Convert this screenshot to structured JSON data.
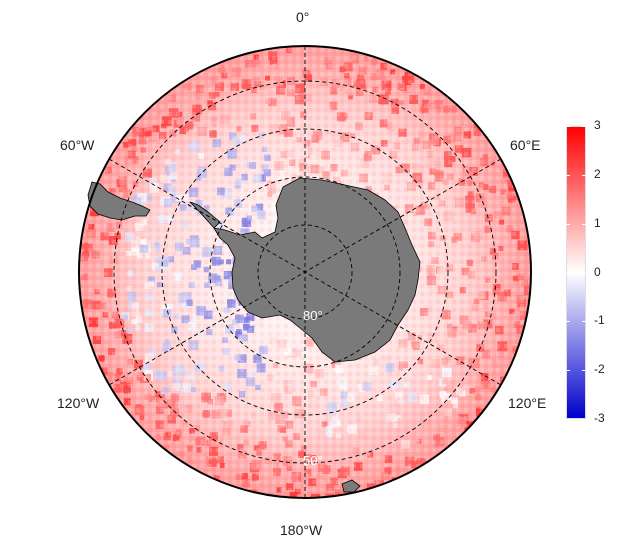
{
  "map": {
    "projection": "south-polar-stereographic",
    "longitude_labels": {
      "top": "0°",
      "upper_left": "60°W",
      "upper_right": "60°E",
      "lower_left": "120°W",
      "lower_right": "120°E",
      "bottom": "180°W"
    },
    "latitude_labels": {
      "inner": "80°",
      "outer": "50°"
    },
    "colors": {
      "land": "#7a7a7a",
      "graticule": "#000000",
      "positive": "#ff0000",
      "neutral": "#ffffff",
      "negative": "#0000cc"
    }
  },
  "colorbar": {
    "min": -3,
    "max": 3,
    "tick_labels": [
      "3",
      "2",
      "1",
      "0",
      "-1",
      "-2",
      "-3"
    ],
    "gradient": [
      "#ff0000",
      "#ff8080",
      "#ffffff",
      "#8080e6",
      "#0000cc"
    ]
  }
}
